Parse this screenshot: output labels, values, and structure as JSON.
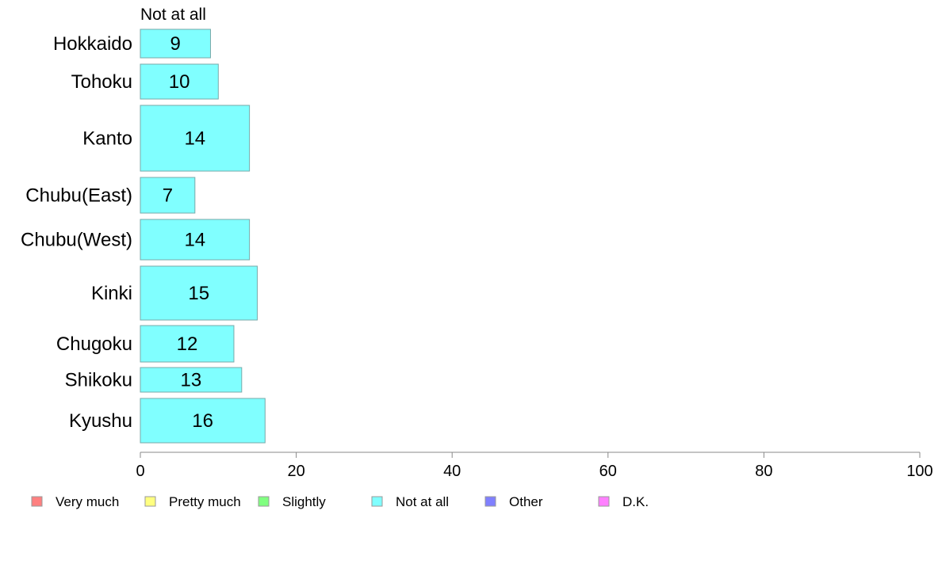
{
  "chart_data": {
    "type": "bar",
    "orientation": "horizontal",
    "stacked": true,
    "categories": [
      "Hokkaido",
      "Tohoku",
      "Kanto",
      "Chubu(East)",
      "Chubu(West)",
      "Kinki",
      "Chugoku",
      "Shikoku",
      "Kyushu"
    ],
    "series": [
      {
        "name": "Not at all",
        "color": "#80ffff",
        "values": [
          9,
          10,
          14,
          7,
          14,
          15,
          12,
          13,
          16
        ]
      }
    ],
    "series_title": "Not at all",
    "xlim": [
      0,
      100
    ],
    "xticks": [
      "0",
      "20",
      "40",
      "60",
      "80",
      "100"
    ],
    "grid": false,
    "legend_position": "bottom",
    "legend": [
      {
        "label": "Very much",
        "color": "#ff8080"
      },
      {
        "label": "Pretty much",
        "color": "#ffff80"
      },
      {
        "label": "Slightly",
        "color": "#80ff80"
      },
      {
        "label": "Not at all",
        "color": "#80ffff"
      },
      {
        "label": "Other",
        "color": "#8080ff"
      },
      {
        "label": "D.K.",
        "color": "#ff80ff"
      }
    ]
  }
}
